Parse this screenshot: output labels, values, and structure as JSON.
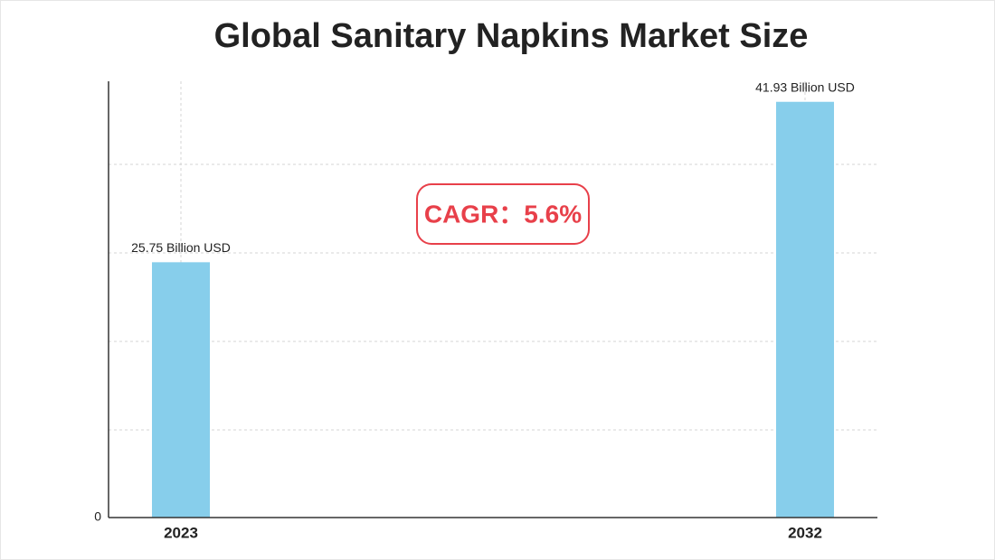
{
  "chart_data": {
    "type": "bar",
    "title": "Global Sanitary Napkins Market Size",
    "categories": [
      "2023",
      "2032"
    ],
    "values": [
      25.75,
      41.93
    ],
    "value_labels": [
      "25.75 Billion USD",
      "41.93 Billion USD"
    ],
    "color": "#87ceeb",
    "ylim": [
      0,
      44
    ],
    "yticks": [
      0
    ],
    "grid": true,
    "annotation": "CAGR：5.6%"
  }
}
